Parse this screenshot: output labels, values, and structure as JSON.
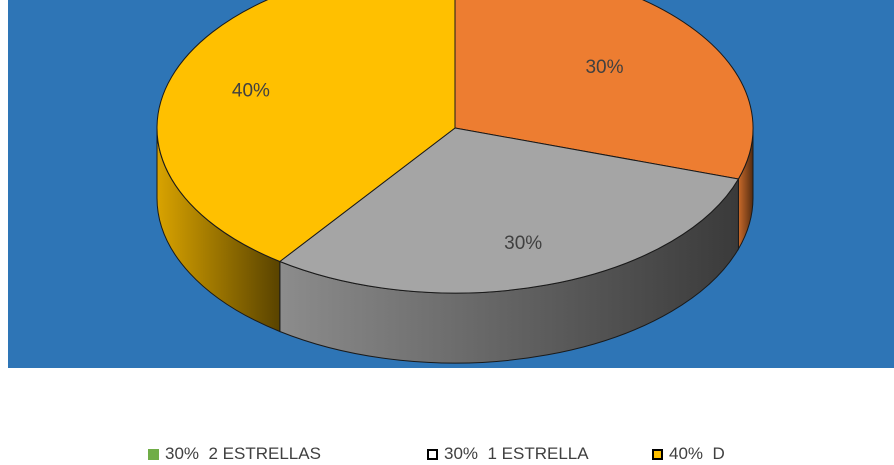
{
  "chart_data": {
    "type": "pie",
    "three_d": true,
    "background_color": "#2e75b6",
    "slices": [
      {
        "legend_label": "30%  2 ESTRELLAS",
        "data_label": "30%",
        "value": 30,
        "color": "#ed7d31",
        "swatch_color": "#70ad47",
        "swatch_border": "#70ad47"
      },
      {
        "legend_label": "30%  1 ESTRELLA",
        "data_label": "30%",
        "value": 30,
        "color": "#a5a5a5",
        "swatch_color": "#ffffff",
        "swatch_border": "#000000"
      },
      {
        "legend_label": "40%  D",
        "data_label": "40%",
        "value": 40,
        "color": "#ffc000",
        "swatch_color": "#ffc000",
        "swatch_border": "#000000"
      }
    ],
    "legend_position": "bottom"
  }
}
